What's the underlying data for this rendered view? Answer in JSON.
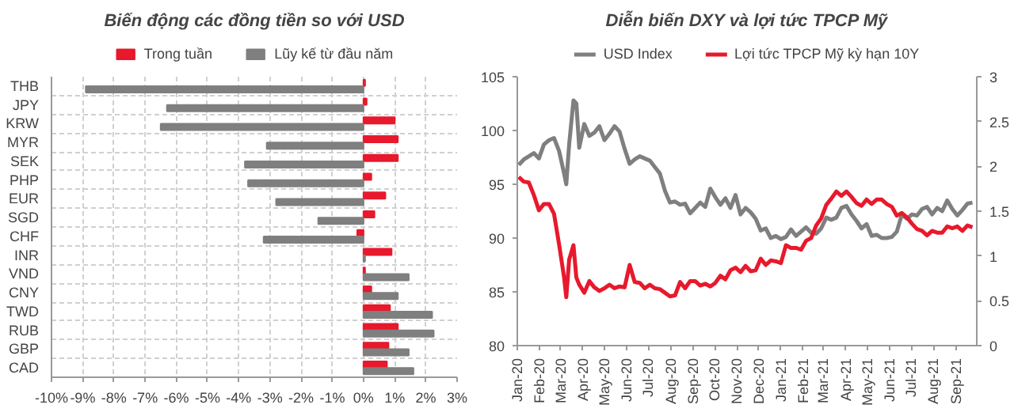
{
  "chart_data": [
    {
      "type": "bar",
      "orientation": "horizontal",
      "title": "Biến động các đồng tiền so với USD",
      "categories": [
        "THB",
        "JPY",
        "KRW",
        "MYR",
        "SEK",
        "PHP",
        "EUR",
        "SGD",
        "CHF",
        "INR",
        "VND",
        "CNY",
        "TWD",
        "RUB",
        "GBP",
        "CAD"
      ],
      "series": [
        {
          "name": "Trong tuần",
          "color": "#e8192c",
          "values": [
            0.05,
            0.1,
            1.0,
            1.1,
            1.1,
            0.25,
            0.7,
            0.35,
            -0.2,
            0.9,
            0.05,
            0.25,
            0.85,
            1.1,
            0.8,
            0.75
          ]
        },
        {
          "name": "Lũy kế từ đầu năm",
          "color": "#7f7f7f",
          "values": [
            -8.9,
            -6.3,
            -6.5,
            -3.1,
            -3.8,
            -3.7,
            -2.8,
            -1.45,
            -3.2,
            0.05,
            1.45,
            1.1,
            2.2,
            2.25,
            1.45,
            1.6
          ]
        }
      ],
      "xlim": [
        -10,
        3
      ],
      "xticks": [
        {
          "value": -10,
          "label": "-10%"
        },
        {
          "value": -9,
          "label": "-9%"
        },
        {
          "value": -8,
          "label": "-8%"
        },
        {
          "value": -7,
          "label": "-7%"
        },
        {
          "value": -6,
          "label": "-6%"
        },
        {
          "value": -5,
          "label": "-5%"
        },
        {
          "value": -4,
          "label": "-4%"
        },
        {
          "value": -3,
          "label": "-3%"
        },
        {
          "value": -2,
          "label": "-2%"
        },
        {
          "value": -1,
          "label": "-1%"
        },
        {
          "value": 0,
          "label": "0%"
        },
        {
          "value": 1,
          "label": "1%"
        },
        {
          "value": 2,
          "label": "2%"
        },
        {
          "value": 3,
          "label": "3%"
        }
      ],
      "grid": true,
      "legend": "top"
    },
    {
      "type": "line",
      "title": "Diễn biến DXY và lợi tức TPCP Mỹ",
      "x": [
        "2020-01-03",
        "2020-01-10",
        "2020-01-17",
        "2020-01-24",
        "2020-01-31",
        "2020-02-07",
        "2020-02-14",
        "2020-02-21",
        "2020-02-28",
        "2020-03-06",
        "2020-03-09",
        "2020-03-13",
        "2020-03-19",
        "2020-03-23",
        "2020-03-27",
        "2020-04-03",
        "2020-04-10",
        "2020-04-17",
        "2020-04-24",
        "2020-05-01",
        "2020-05-08",
        "2020-05-15",
        "2020-05-22",
        "2020-05-29",
        "2020-06-05",
        "2020-06-12",
        "2020-06-19",
        "2020-06-26",
        "2020-07-03",
        "2020-07-10",
        "2020-07-17",
        "2020-07-24",
        "2020-07-31",
        "2020-08-07",
        "2020-08-14",
        "2020-08-21",
        "2020-08-28",
        "2020-09-04",
        "2020-09-11",
        "2020-09-18",
        "2020-09-25",
        "2020-10-02",
        "2020-10-09",
        "2020-10-16",
        "2020-10-23",
        "2020-10-30",
        "2020-11-06",
        "2020-11-13",
        "2020-11-20",
        "2020-11-27",
        "2020-12-04",
        "2020-12-11",
        "2020-12-18",
        "2020-12-25",
        "2021-01-01",
        "2021-01-08",
        "2021-01-15",
        "2021-01-22",
        "2021-01-29",
        "2021-02-05",
        "2021-02-12",
        "2021-02-19",
        "2021-02-26",
        "2021-03-05",
        "2021-03-12",
        "2021-03-19",
        "2021-03-26",
        "2021-04-02",
        "2021-04-09",
        "2021-04-16",
        "2021-04-23",
        "2021-04-30",
        "2021-05-07",
        "2021-05-14",
        "2021-05-21",
        "2021-05-28",
        "2021-06-04",
        "2021-06-11",
        "2021-06-18",
        "2021-06-25",
        "2021-07-02",
        "2021-07-09",
        "2021-07-16",
        "2021-07-23",
        "2021-07-30",
        "2021-08-06",
        "2021-08-13",
        "2021-08-20",
        "2021-08-27",
        "2021-09-03",
        "2021-09-10",
        "2021-09-17",
        "2021-09-24"
      ],
      "series": [
        {
          "name": "USD Index",
          "color": "#7f7f7f",
          "values": [
            96.8,
            97.3,
            97.6,
            97.9,
            97.4,
            98.7,
            99.1,
            99.3,
            98.1,
            96.0,
            95.0,
            98.7,
            102.8,
            102.5,
            98.4,
            100.6,
            99.5,
            99.8,
            100.4,
            99.1,
            99.7,
            100.4,
            99.9,
            98.3,
            96.9,
            97.3,
            97.6,
            97.4,
            97.2,
            96.6,
            96.0,
            94.4,
            93.3,
            93.4,
            93.1,
            93.2,
            92.3,
            92.8,
            93.3,
            92.9,
            94.6,
            93.8,
            93.1,
            93.7,
            92.8,
            94.0,
            92.2,
            92.8,
            92.4,
            91.8,
            90.7,
            90.9,
            90.0,
            90.2,
            89.9,
            90.1,
            90.8,
            90.2,
            90.6,
            91.0,
            90.5,
            90.4,
            90.9,
            91.9,
            91.7,
            91.9,
            92.8,
            93.0,
            92.2,
            91.6,
            90.9,
            91.3,
            90.2,
            90.3,
            90.0,
            90.0,
            90.1,
            90.6,
            92.2,
            91.8,
            92.2,
            92.1,
            92.7,
            92.9,
            92.2,
            92.8,
            92.5,
            93.5,
            92.7,
            92.1,
            92.6,
            93.2,
            93.3
          ]
        },
        {
          "name": "Lợi tức TPCP Mỹ kỳ hạn 10Y",
          "color": "#e8192c",
          "axis": "y2",
          "values": [
            1.88,
            1.83,
            1.82,
            1.68,
            1.51,
            1.58,
            1.58,
            1.47,
            1.13,
            0.76,
            0.54,
            0.96,
            1.12,
            0.76,
            0.68,
            0.59,
            0.72,
            0.65,
            0.61,
            0.64,
            0.68,
            0.64,
            0.66,
            0.65,
            0.9,
            0.71,
            0.7,
            0.64,
            0.68,
            0.64,
            0.63,
            0.59,
            0.55,
            0.56,
            0.71,
            0.64,
            0.72,
            0.72,
            0.67,
            0.69,
            0.66,
            0.7,
            0.78,
            0.74,
            0.84,
            0.87,
            0.82,
            0.89,
            0.83,
            0.84,
            0.97,
            0.9,
            0.95,
            0.94,
            0.92,
            1.12,
            1.09,
            1.09,
            1.07,
            1.17,
            1.2,
            1.34,
            1.42,
            1.57,
            1.64,
            1.72,
            1.67,
            1.72,
            1.66,
            1.59,
            1.56,
            1.63,
            1.58,
            1.63,
            1.63,
            1.58,
            1.55,
            1.45,
            1.48,
            1.43,
            1.36,
            1.3,
            1.28,
            1.23,
            1.28,
            1.26,
            1.26,
            1.33,
            1.31,
            1.33,
            1.28,
            1.34,
            1.32
          ]
        }
      ],
      "xlim": [
        "2020-01-01",
        "2021-09-30"
      ],
      "xticks": [
        {
          "value": "2020-01-01",
          "label": "Jan-20"
        },
        {
          "value": "2020-02-01",
          "label": "Feb-20"
        },
        {
          "value": "2020-03-01",
          "label": "Mar-20"
        },
        {
          "value": "2020-04-01",
          "label": "Apr-20"
        },
        {
          "value": "2020-05-01",
          "label": "May-20"
        },
        {
          "value": "2020-06-01",
          "label": "Jun-20"
        },
        {
          "value": "2020-07-01",
          "label": "Jul-20"
        },
        {
          "value": "2020-08-01",
          "label": "Aug-20"
        },
        {
          "value": "2020-09-01",
          "label": "Sep-20"
        },
        {
          "value": "2020-10-01",
          "label": "Oct-20"
        },
        {
          "value": "2020-11-01",
          "label": "Nov-20"
        },
        {
          "value": "2020-12-01",
          "label": "Dec-20"
        },
        {
          "value": "2021-01-01",
          "label": "Jan-21"
        },
        {
          "value": "2021-02-01",
          "label": "Feb-21"
        },
        {
          "value": "2021-03-01",
          "label": "Mar-21"
        },
        {
          "value": "2021-04-01",
          "label": "Apr-21"
        },
        {
          "value": "2021-05-01",
          "label": "May-21"
        },
        {
          "value": "2021-06-01",
          "label": "Jun-21"
        },
        {
          "value": "2021-07-01",
          "label": "Jul-21"
        },
        {
          "value": "2021-08-01",
          "label": "Aug-21"
        },
        {
          "value": "2021-09-01",
          "label": "Sep-21"
        }
      ],
      "ylim": [
        80,
        105
      ],
      "yticks": [
        80,
        85,
        90,
        95,
        100,
        105
      ],
      "y2lim": [
        0,
        3
      ],
      "y2ticks": [
        0,
        0.5,
        1,
        1.5,
        2,
        2.5,
        3
      ],
      "grid": false,
      "legend": "top"
    }
  ]
}
